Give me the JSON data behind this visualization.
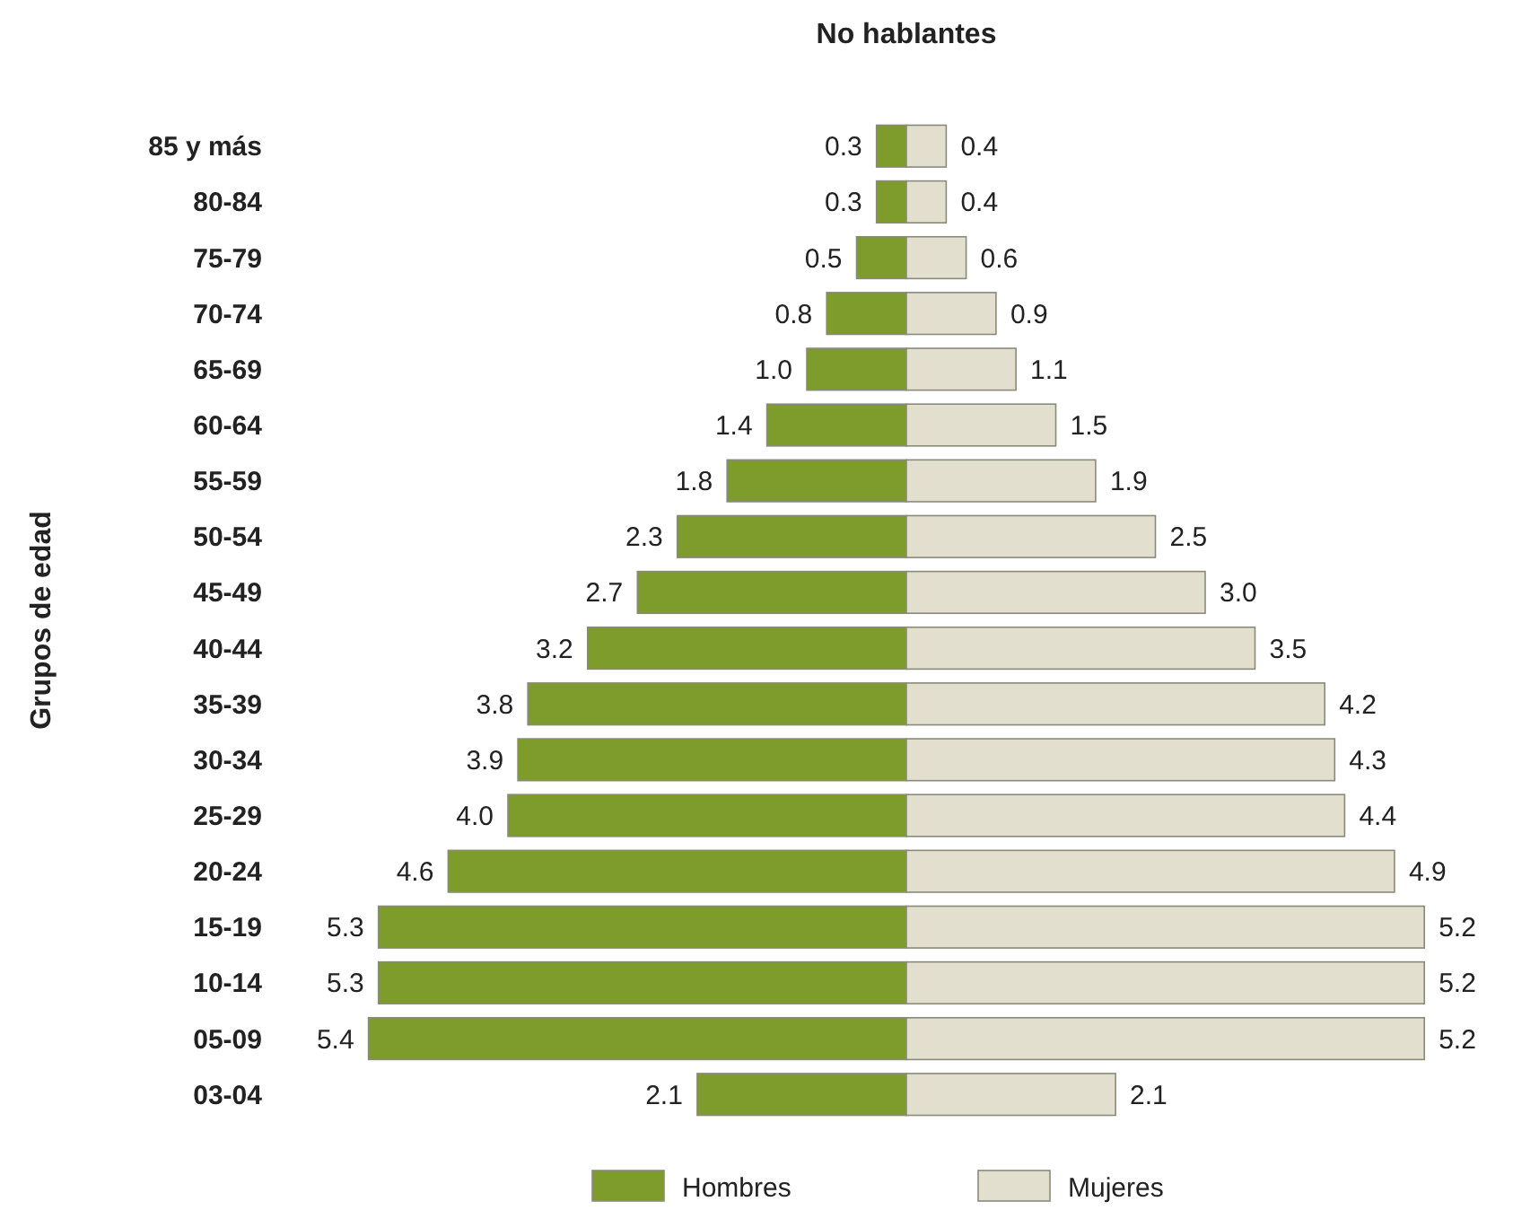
{
  "chart_data": [
    {
      "type": "bar",
      "orientation": "horizontal",
      "title": "No hablantes",
      "ylabel": "Grupos de edad",
      "categories": [
        "85 y más",
        "80-84",
        "75-79",
        "70-74",
        "65-69",
        "60-64",
        "55-59",
        "50-54",
        "45-49",
        "40-44",
        "35-39",
        "30-34",
        "25-29",
        "20-24",
        "15-19",
        "10-14",
        "05-09",
        "03-04"
      ],
      "series": [
        {
          "name": "Hombres",
          "color": "#7d9c2c",
          "values": [
            0.3,
            0.3,
            0.5,
            0.8,
            1.0,
            1.4,
            1.8,
            2.3,
            2.7,
            3.2,
            3.8,
            3.9,
            4.0,
            4.6,
            5.3,
            5.3,
            5.4,
            2.1
          ],
          "value_labels": [
            "0.3",
            "0.3",
            "0.5",
            "0.8",
            "1.0",
            "1.4",
            "1.8",
            "2.3",
            "2.7",
            "3.2",
            "3.8",
            "3.9",
            "4.0",
            "4.6",
            "5.3",
            "5.3",
            "5.4",
            "2.1"
          ]
        }
      ],
      "xlim": [
        5.4,
        0
      ],
      "tick_labels": "y",
      "legend": "bottom"
    },
    {
      "type": "bar",
      "orientation": "horizontal",
      "series": [
        {
          "name": "Mujeres",
          "color": "#e2dfcf",
          "values": [
            0.4,
            0.4,
            0.6,
            0.9,
            1.1,
            1.5,
            1.9,
            2.5,
            3.0,
            3.5,
            4.2,
            4.3,
            4.4,
            4.9,
            5.2,
            5.2,
            5.2,
            2.1
          ],
          "value_labels": [
            "0.4",
            "0.4",
            "0.6",
            "0.9",
            "1.1",
            "1.5",
            "1.9",
            "2.5",
            "3.0",
            "3.5",
            "4.2",
            "4.3",
            "4.4",
            "4.9",
            "5.2",
            "5.2",
            "5.2",
            "2.1"
          ]
        }
      ],
      "xlim": [
        0,
        5.2
      ],
      "tick_labels": false,
      "legend": "bottom"
    }
  ]
}
